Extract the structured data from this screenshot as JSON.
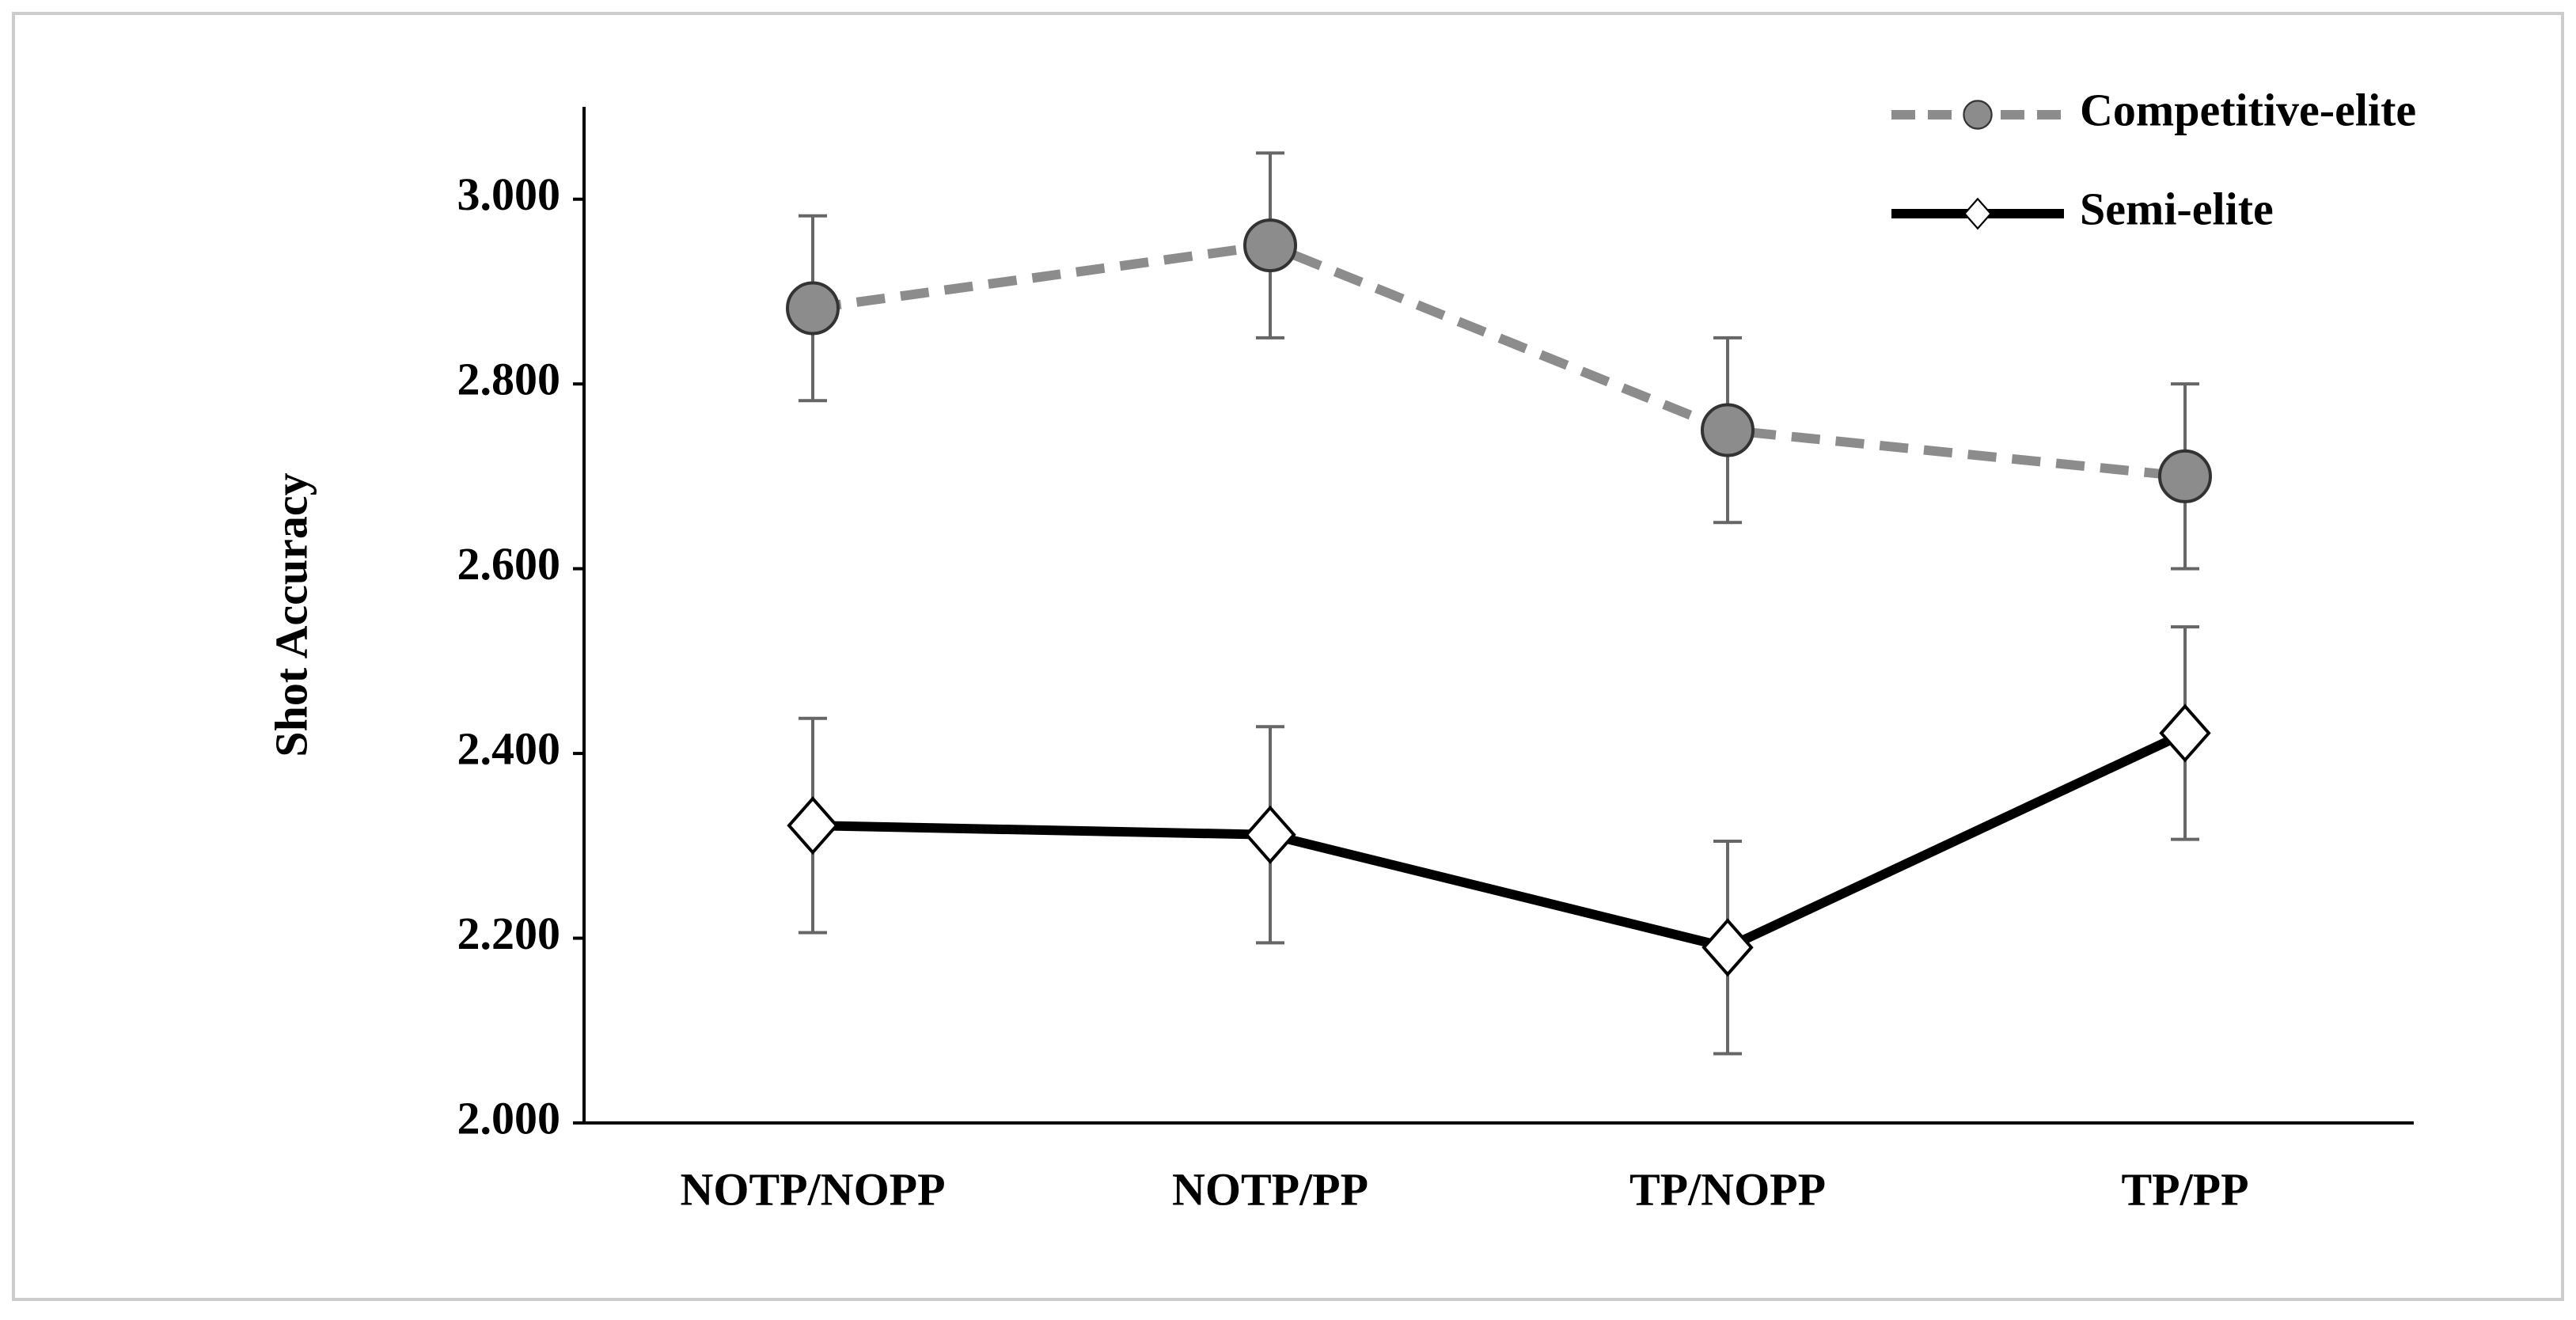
{
  "chart_data": {
    "type": "line",
    "y_label": "Shot Accuracy",
    "categories": [
      "NOTP/NOPP",
      "NOTP/PP",
      "TP/NOPP",
      "TP/PP"
    ],
    "series": [
      {
        "name": "Competitive-elite",
        "color": "#8c8c8c",
        "marker": "circle",
        "dash": true,
        "values": [
          2.882,
          2.95,
          2.75,
          2.7
        ],
        "errors": [
          0.1,
          0.1,
          0.1,
          0.1
        ]
      },
      {
        "name": "Semi-elite",
        "color": "#000000",
        "marker": "diamond",
        "dash": false,
        "values": [
          2.322,
          2.312,
          2.19,
          2.422
        ],
        "errors": [
          0.116,
          0.117,
          0.115,
          0.115
        ]
      }
    ],
    "ylim": [
      2,
      3.1
    ],
    "yticks": [
      {
        "value": 2,
        "label": "2.000"
      },
      {
        "value": 2.2,
        "label": "2.200"
      },
      {
        "value": 2.4,
        "label": "2.400"
      },
      {
        "value": 2.6,
        "label": "2.600"
      },
      {
        "value": 2.8,
        "label": "2.800"
      },
      {
        "value": 3,
        "label": "3.000"
      }
    ],
    "grid": false,
    "legend": "top-right"
  }
}
